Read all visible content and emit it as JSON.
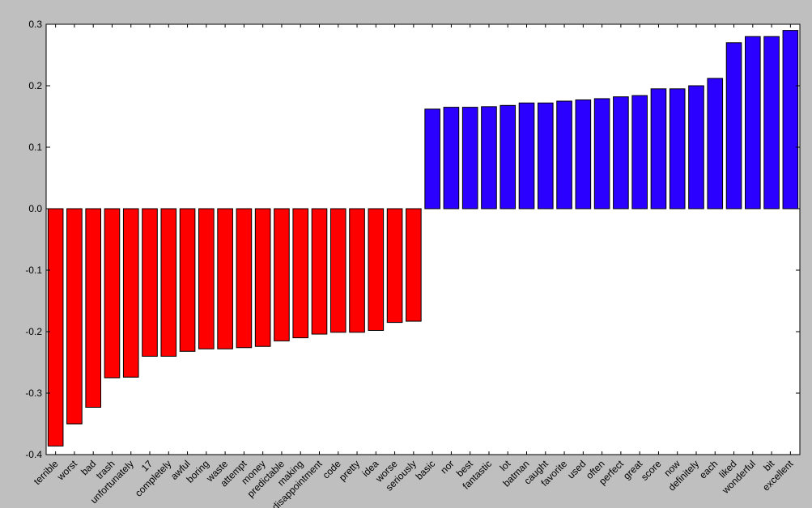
{
  "chart_data": {
    "type": "bar",
    "categories": [
      "terrible",
      "worst",
      "bad",
      "trash",
      "unfortunately",
      "17",
      "completely",
      "awful",
      "boring",
      "waste",
      "attempt",
      "money",
      "predictable",
      "making",
      "disappointment",
      "code",
      "pretty",
      "idea",
      "worse",
      "seriously",
      "basic",
      "nor",
      "best",
      "fantastic",
      "lot",
      "batman",
      "caught",
      "favorite",
      "used",
      "often",
      "perfect",
      "great",
      "score",
      "now",
      "definitely",
      "each",
      "liked",
      "wonderful",
      "bit",
      "excellent"
    ],
    "values": [
      -0.386,
      -0.35,
      -0.323,
      -0.275,
      -0.274,
      -0.24,
      -0.24,
      -0.232,
      -0.228,
      -0.228,
      -0.226,
      -0.224,
      -0.215,
      -0.21,
      -0.204,
      -0.201,
      -0.201,
      -0.198,
      -0.185,
      -0.183,
      0.162,
      0.165,
      0.165,
      0.166,
      0.168,
      0.172,
      0.172,
      0.175,
      0.177,
      0.179,
      0.182,
      0.184,
      0.195,
      0.195,
      0.2,
      0.212,
      0.27,
      0.28,
      0.28,
      0.29
    ],
    "ylim": [
      -0.4,
      0.3
    ],
    "yticks": [
      "-0.4",
      "-0.3",
      "-0.2",
      "-0.1",
      "0.0",
      "0.1",
      "0.2",
      "0.3"
    ],
    "ytick_values": [
      -0.4,
      -0.3,
      -0.2,
      -0.1,
      0.0,
      0.1,
      0.2,
      0.3
    ],
    "colors": {
      "negative": "#ff0000",
      "positive": "#2b00ff",
      "edge": "#000000",
      "background": "#ffffff",
      "frame": "#bfbfbf"
    },
    "grid": false,
    "xtick_rotation": 45
  }
}
